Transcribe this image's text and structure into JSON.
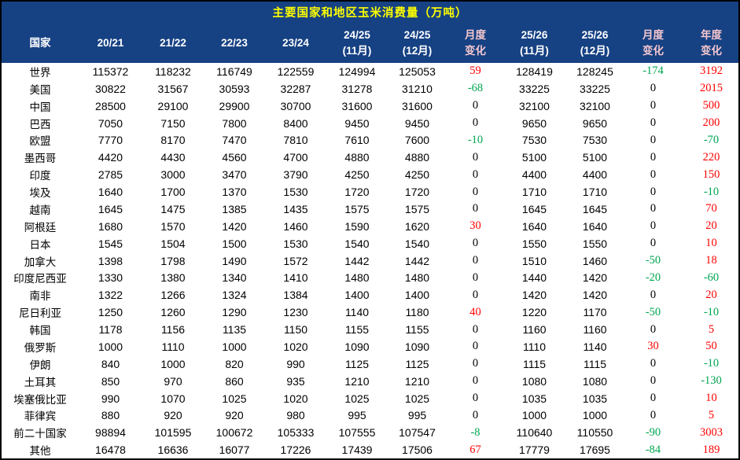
{
  "title": "主要国家和地区玉米消费量（万吨）",
  "colors": {
    "header_bg": "#164183",
    "title_text": "#FFFF00",
    "header_text": "#FFFFFF",
    "header_accent_text": "#F4C7CE",
    "positive_change": "#FF0000",
    "negative_change": "#00A550",
    "body_text": "#000000",
    "border": "#000000"
  },
  "header": {
    "column_lines": [
      [
        "国家"
      ],
      [
        "20/21"
      ],
      [
        "21/22"
      ],
      [
        "22/23"
      ],
      [
        "23/24"
      ],
      [
        "24/25",
        "(11月)"
      ],
      [
        "24/25",
        "(12月)"
      ],
      [
        "月度",
        "变化"
      ],
      [
        "25/26",
        "(11月)"
      ],
      [
        "25/26",
        "(12月)"
      ],
      [
        "月度",
        "变化"
      ],
      [
        "年度",
        "变化"
      ]
    ],
    "accent_columns": [
      7,
      10,
      11
    ]
  },
  "change_value_columns": [
    7,
    10,
    11
  ],
  "chart_data": {
    "type": "table",
    "title": "主要国家和地区玉米消费量（万吨）",
    "unit": "万吨",
    "columns": [
      "国家",
      "20/21",
      "21/22",
      "22/23",
      "23/24",
      "24/25 (11月)",
      "24/25 (12月)",
      "月度变化",
      "25/26 (11月)",
      "25/26 (12月)",
      "月度变化",
      "年度变化"
    ],
    "rows": [
      [
        "世界",
        115372,
        118232,
        116749,
        122559,
        124994,
        125053,
        59,
        128419,
        128245,
        -174,
        3192
      ],
      [
        "美国",
        30822,
        31567,
        30593,
        32287,
        31278,
        31210,
        -68,
        33225,
        33225,
        0,
        2015
      ],
      [
        "中国",
        28500,
        29100,
        29900,
        30700,
        31600,
        31600,
        0,
        32100,
        32100,
        0,
        500
      ],
      [
        "巴西",
        7050,
        7150,
        7800,
        8400,
        9450,
        9450,
        0,
        9650,
        9650,
        0,
        200
      ],
      [
        "欧盟",
        7770,
        8170,
        7470,
        7810,
        7610,
        7600,
        -10,
        7530,
        7530,
        0,
        -70
      ],
      [
        "墨西哥",
        4420,
        4430,
        4560,
        4700,
        4880,
        4880,
        0,
        5100,
        5100,
        0,
        220
      ],
      [
        "印度",
        2785,
        3000,
        3470,
        3790,
        4250,
        4250,
        0,
        4400,
        4400,
        0,
        150
      ],
      [
        "埃及",
        1640,
        1700,
        1370,
        1530,
        1720,
        1720,
        0,
        1710,
        1710,
        0,
        -10
      ],
      [
        "越南",
        1645,
        1475,
        1385,
        1435,
        1575,
        1575,
        0,
        1645,
        1645,
        0,
        70
      ],
      [
        "阿根廷",
        1680,
        1570,
        1420,
        1460,
        1590,
        1620,
        30,
        1640,
        1640,
        0,
        20
      ],
      [
        "日本",
        1545,
        1504,
        1500,
        1530,
        1540,
        1540,
        0,
        1550,
        1550,
        0,
        10
      ],
      [
        "加拿大",
        1398,
        1798,
        1490,
        1572,
        1442,
        1442,
        0,
        1510,
        1460,
        -50,
        18
      ],
      [
        "印度尼西亚",
        1330,
        1380,
        1340,
        1410,
        1480,
        1480,
        0,
        1440,
        1420,
        -20,
        -60
      ],
      [
        "南非",
        1322,
        1266,
        1324,
        1384,
        1400,
        1400,
        0,
        1420,
        1420,
        0,
        20
      ],
      [
        "尼日利亚",
        1250,
        1260,
        1290,
        1230,
        1140,
        1180,
        40,
        1220,
        1170,
        -50,
        -10
      ],
      [
        "韩国",
        1178,
        1156,
        1135,
        1150,
        1155,
        1155,
        0,
        1160,
        1160,
        0,
        5
      ],
      [
        "俄罗斯",
        1000,
        1110,
        1000,
        1020,
        1090,
        1090,
        0,
        1110,
        1140,
        30,
        50
      ],
      [
        "伊朗",
        840,
        1000,
        820,
        990,
        1125,
        1125,
        0,
        1115,
        1115,
        0,
        -10
      ],
      [
        "土耳其",
        850,
        970,
        860,
        935,
        1210,
        1210,
        0,
        1080,
        1080,
        0,
        -130
      ],
      [
        "埃塞俄比亚",
        990,
        1070,
        1025,
        1020,
        1025,
        1025,
        0,
        1035,
        1035,
        0,
        10
      ],
      [
        "菲律宾",
        880,
        920,
        920,
        980,
        995,
        995,
        0,
        1000,
        1000,
        0,
        5
      ],
      [
        "前二十国家",
        98894,
        101595,
        100672,
        105333,
        107555,
        107547,
        -8,
        110640,
        110550,
        -90,
        3003
      ],
      [
        "其他",
        16478,
        16636,
        16077,
        17226,
        17439,
        17506,
        67,
        17779,
        17695,
        -84,
        189
      ]
    ]
  }
}
